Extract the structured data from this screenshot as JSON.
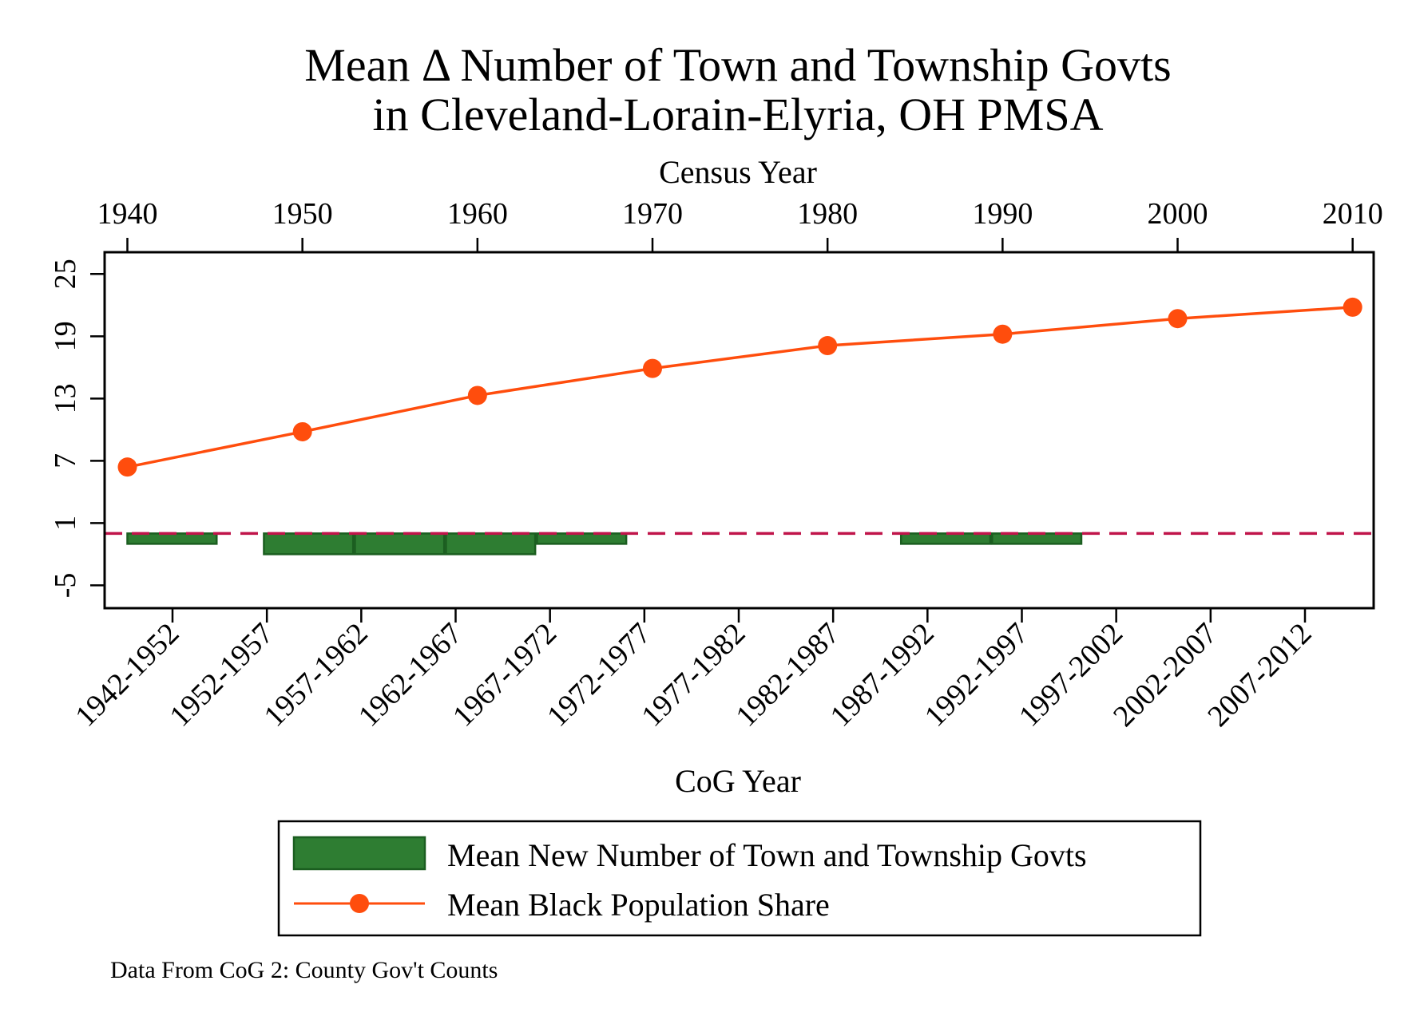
{
  "chart_data": {
    "type": "bar+line",
    "title": [
      "Mean Δ Number of Town and Township Govts",
      "in Cleveland-Lorain-Elyria, OH PMSA"
    ],
    "top_axis": {
      "label": "Census Year",
      "ticks": [
        1940,
        1950,
        1960,
        1970,
        1980,
        1990,
        2000,
        2010
      ]
    },
    "bottom_axis": {
      "label": "CoG Year",
      "tick_labels": [
        "1942-1952",
        "1952-1957",
        "1957-1962",
        "1962-1967",
        "1967-1972",
        "1972-1977",
        "1977-1982",
        "1982-1987",
        "1987-1992",
        "1992-1997",
        "1997-2002",
        "2002-2007",
        "2007-2012"
      ]
    },
    "y_axis": {
      "ticks": [
        -5,
        1,
        7,
        13,
        19,
        25
      ],
      "ylim": [
        -7.2,
        27.1
      ]
    },
    "xlim": [
      1938.7,
      2011.2
    ],
    "reference_line": {
      "y": 0,
      "style": "dashed",
      "color": "#c0144a"
    },
    "bar_series": {
      "name": "Mean New Number of Town and Township Govts",
      "color": "#2e7d32",
      "edge_color": "#1b5e20",
      "bars": [
        {
          "x0": 1940.0,
          "x1": 1945.1,
          "value": -1.0
        },
        {
          "x0": 1947.8,
          "x1": 1952.9,
          "value": -2.0
        },
        {
          "x0": 1953.0,
          "x1": 1958.1,
          "value": -2.0
        },
        {
          "x0": 1958.2,
          "x1": 1963.3,
          "value": -2.0
        },
        {
          "x0": 1963.4,
          "x1": 1968.5,
          "value": -1.0
        },
        {
          "x0": 1984.2,
          "x1": 1989.3,
          "value": -1.0
        },
        {
          "x0": 1989.4,
          "x1": 1994.5,
          "value": -1.0
        }
      ]
    },
    "line_series": {
      "name": "Mean Black Population Share",
      "color": "#ff4d0d",
      "x": [
        1940,
        1950,
        1960,
        1970,
        1980,
        1990,
        2000,
        2010
      ],
      "y": [
        6.4,
        9.8,
        13.3,
        15.9,
        18.1,
        19.2,
        20.7,
        21.8
      ]
    }
  },
  "note": "Data From CoG 2: County Gov't Counts"
}
